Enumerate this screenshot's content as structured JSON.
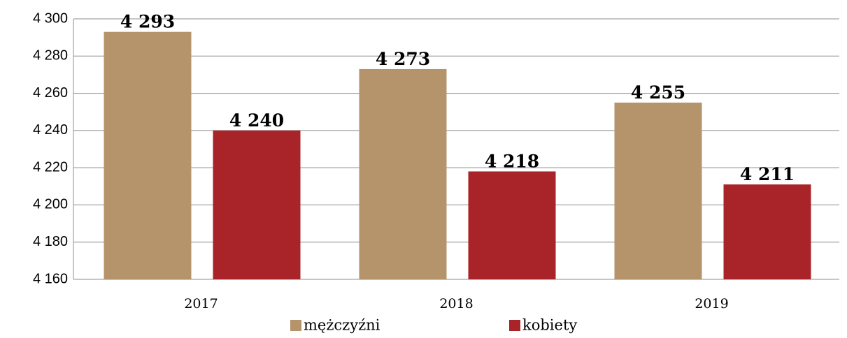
{
  "chart_data": {
    "type": "bar",
    "categories": [
      "2017",
      "2018",
      "2019"
    ],
    "series": [
      {
        "name": "mężczyźni",
        "color": "#b5946b",
        "values": [
          4293,
          4273,
          4255
        ],
        "value_labels": [
          "4 293",
          "4 273",
          "4 255"
        ]
      },
      {
        "name": "kobiety",
        "color": "#a82428",
        "values": [
          4240,
          4218,
          4211
        ],
        "value_labels": [
          "4 240",
          "4 218",
          "4 211"
        ]
      }
    ],
    "ylim": [
      4160,
      4300
    ],
    "yticks": [
      {
        "value": 4160,
        "label": "4 160"
      },
      {
        "value": 4180,
        "label": "4 180"
      },
      {
        "value": 4200,
        "label": "4 200"
      },
      {
        "value": 4220,
        "label": "4 220"
      },
      {
        "value": 4240,
        "label": "4 240"
      },
      {
        "value": 4260,
        "label": "4 260"
      },
      {
        "value": 4280,
        "label": "4 280"
      },
      {
        "value": 4300,
        "label": "4 300"
      }
    ],
    "grid": true,
    "legend": "bottom"
  }
}
